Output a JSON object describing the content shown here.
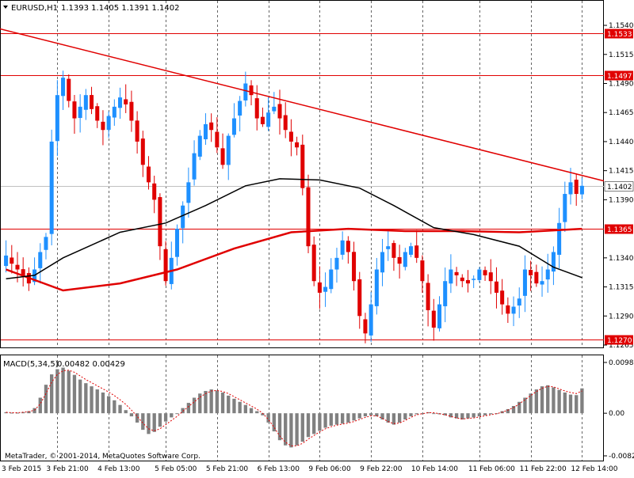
{
  "header": {
    "symbol_label": "EURUSD,H1",
    "ohlc_label": "1.1393 1.1405 1.1391 1.1402"
  },
  "indicator": {
    "label": "MACD(5,34,5)",
    "values_label": "0.00482 0.00429"
  },
  "footer": {
    "copyright": "MetaTrader, © 2001-2014, MetaQuotes Software Corp."
  },
  "colors": {
    "background": "#ffffff",
    "bull_candle": "#1e90ff",
    "bear_candle": "#e00000",
    "trendline": "#e00000",
    "ma_slow": "#e00000",
    "ma_fast": "#000000",
    "histogram": "#808080",
    "signal": "#e00000",
    "price_highlight": "#e00000"
  },
  "chart_data": [
    {
      "type": "candlestick",
      "title": "EURUSD,H1",
      "timeframe": "H1",
      "current_price": 1.1402,
      "ylim": [
        1.1265,
        1.1555
      ],
      "y_ticks": [
        1.1265,
        1.129,
        1.1315,
        1.134,
        1.139,
        1.1415,
        1.144,
        1.1465,
        1.149,
        1.1515,
        1.154
      ],
      "x_ticks": [
        "3 Feb 2015",
        "3 Feb 21:00",
        "4 Feb 13:00",
        "5 Feb 05:00",
        "5 Feb 21:00",
        "6 Feb 13:00",
        "9 Feb 06:00",
        "9 Feb 22:00",
        "10 Feb 14:00",
        "11 Feb 06:00",
        "11 Feb 22:00",
        "12 Feb 14:00"
      ],
      "horizontal_levels": [
        {
          "value": 1.1533,
          "label": "1.1533"
        },
        {
          "value": 1.1497,
          "label": "1.1497"
        },
        {
          "value": 1.1365,
          "label": "1.1365"
        },
        {
          "value": 1.127,
          "label": "1.1270"
        }
      ],
      "price_label": "1.1402",
      "trendline": {
        "start": {
          "x": "3 Feb 2015",
          "y": 1.1537
        },
        "end": {
          "x": "12 Feb 14:00",
          "y": 1.1411
        }
      },
      "candle_path": [
        1.1342,
        1.1335,
        1.133,
        1.1325,
        1.1318,
        1.133,
        1.1345,
        1.1358,
        1.144,
        1.148,
        1.1495,
        1.1475,
        1.146,
        1.147,
        1.148,
        1.1468,
        1.1458,
        1.145,
        1.1462,
        1.147,
        1.1478,
        1.1472,
        1.1458,
        1.144,
        1.142,
        1.1405,
        1.139,
        1.135,
        1.132,
        1.134,
        1.1365,
        1.1385,
        1.1405,
        1.143,
        1.1445,
        1.1455,
        1.145,
        1.1435,
        1.142,
        1.1445,
        1.146,
        1.1475,
        1.149,
        1.148,
        1.146,
        1.1455,
        1.1465,
        1.147,
        1.146,
        1.145,
        1.144,
        1.1435,
        1.14,
        1.135,
        1.132,
        1.131,
        1.1315,
        1.133,
        1.134,
        1.1355,
        1.1345,
        1.132,
        1.129,
        1.1275,
        1.13,
        1.133,
        1.1345,
        1.135,
        1.134,
        1.1335,
        1.1345,
        1.135,
        1.134,
        1.132,
        1.1295,
        1.128,
        1.13,
        1.132,
        1.133,
        1.1325,
        1.132,
        1.1318,
        1.1322,
        1.133,
        1.1325,
        1.132,
        1.131,
        1.13,
        1.1292,
        1.1298,
        1.1305,
        1.133,
        1.1325,
        1.1318,
        1.132,
        1.133,
        1.1345,
        1.137,
        1.1395,
        1.1405,
        1.1395,
        1.1402
      ],
      "series": [
        {
          "name": "",
          "color": "#e00000",
          "points": [
            [
              0,
              1.133
            ],
            [
              10,
              1.1312
            ],
            [
              20,
              1.1318
            ],
            [
              30,
              1.133
            ],
            [
              40,
              1.1348
            ],
            [
              50,
              1.1362
            ],
            [
              60,
              1.1365
            ],
            [
              70,
              1.1363
            ],
            [
              80,
              1.1363
            ],
            [
              90,
              1.1362
            ],
            [
              101,
              1.1365
            ]
          ]
        },
        {
          "name": "",
          "color": "#000000",
          "points": [
            [
              0,
              1.1322
            ],
            [
              5,
              1.1325
            ],
            [
              10,
              1.134
            ],
            [
              20,
              1.1362
            ],
            [
              28,
              1.137
            ],
            [
              35,
              1.1385
            ],
            [
              42,
              1.1402
            ],
            [
              48,
              1.1408
            ],
            [
              55,
              1.1407
            ],
            [
              62,
              1.14
            ],
            [
              68,
              1.1385
            ],
            [
              75,
              1.1366
            ],
            [
              82,
              1.136
            ],
            [
              90,
              1.135
            ],
            [
              96,
              1.1332
            ],
            [
              101,
              1.1323
            ]
          ]
        }
      ]
    },
    {
      "type": "bar",
      "title": "MACD(5,34,5)",
      "ylim": [
        -0.00822,
        0.0098
      ],
      "y_ticks": [
        0.0098,
        0.0,
        -0.00822
      ],
      "y_tick_labels": [
        "0.0098",
        "0.00",
        "-0.00822"
      ],
      "series": [
        {
          "name": "",
          "type": "bar",
          "color": "#808080",
          "values": [
            0.0002,
            0.0001,
            0.0001,
            0.0002,
            0.0004,
            0.001,
            0.003,
            0.0055,
            0.0075,
            0.0085,
            0.0088,
            0.0082,
            0.0074,
            0.0065,
            0.0058,
            0.0052,
            0.0046,
            0.004,
            0.0033,
            0.0025,
            0.0016,
            0.0006,
            -0.0006,
            -0.0018,
            -0.0032,
            -0.004,
            -0.0036,
            -0.0026,
            -0.0016,
            -0.0008,
            0.0,
            0.001,
            0.002,
            0.003,
            0.0038,
            0.0043,
            0.0046,
            0.0044,
            0.004,
            0.0034,
            0.0028,
            0.0022,
            0.0016,
            0.001,
            0.0004,
            -0.0004,
            -0.0018,
            -0.0035,
            -0.0052,
            -0.0062,
            -0.0066,
            -0.0062,
            -0.0055,
            -0.0046,
            -0.004,
            -0.0034,
            -0.0028,
            -0.0024,
            -0.0022,
            -0.002,
            -0.0018,
            -0.0014,
            -0.001,
            -0.0006,
            -0.0004,
            -0.0006,
            -0.0012,
            -0.0018,
            -0.0022,
            -0.0018,
            -0.0012,
            -0.0006,
            -0.0002,
            0.0,
            0.0002,
            0.0,
            -0.0002,
            -0.0004,
            -0.0008,
            -0.001,
            -0.0012,
            -0.001,
            -0.0008,
            -0.0006,
            -0.0004,
            -0.0002,
            0.0,
            0.0004,
            0.0008,
            0.0014,
            0.0022,
            0.003,
            0.0038,
            0.0046,
            0.0052,
            0.0054,
            0.005,
            0.0045,
            0.004,
            0.0036,
            0.0035,
            0.0048
          ]
        },
        {
          "name": "",
          "type": "line",
          "color": "#e00000",
          "values": [
            0.0002,
            0.0001,
            0.0001,
            0.0002,
            0.0003,
            0.0006,
            0.0018,
            0.0038,
            0.006,
            0.0075,
            0.0082,
            0.0083,
            0.0079,
            0.0072,
            0.0065,
            0.0059,
            0.0053,
            0.0047,
            0.0041,
            0.0034,
            0.0026,
            0.0017,
            0.0006,
            -0.0006,
            -0.0019,
            -0.003,
            -0.0034,
            -0.003,
            -0.0022,
            -0.0014,
            -0.0006,
            0.0004,
            0.0013,
            0.0022,
            0.0031,
            0.0038,
            0.0043,
            0.0044,
            0.0042,
            0.0038,
            0.0032,
            0.0026,
            0.002,
            0.0014,
            0.0008,
            0.0,
            -0.0012,
            -0.0027,
            -0.0044,
            -0.0056,
            -0.0063,
            -0.0063,
            -0.0058,
            -0.005,
            -0.0043,
            -0.0036,
            -0.003,
            -0.0026,
            -0.0023,
            -0.0021,
            -0.0019,
            -0.0016,
            -0.0012,
            -0.0008,
            -0.0005,
            -0.0005,
            -0.001,
            -0.0016,
            -0.002,
            -0.0019,
            -0.0014,
            -0.0008,
            -0.0003,
            -0.0001,
            0.0001,
            0.0001,
            -0.0001,
            -0.0003,
            -0.0006,
            -0.0009,
            -0.0011,
            -0.001,
            -0.0009,
            -0.0007,
            -0.0005,
            -0.0003,
            -0.0001,
            0.0002,
            0.0006,
            0.0011,
            0.0018,
            0.0026,
            0.0034,
            0.0042,
            0.0048,
            0.0052,
            0.0051,
            0.0047,
            0.0043,
            0.004,
            0.0038,
            0.0043
          ]
        }
      ]
    }
  ]
}
